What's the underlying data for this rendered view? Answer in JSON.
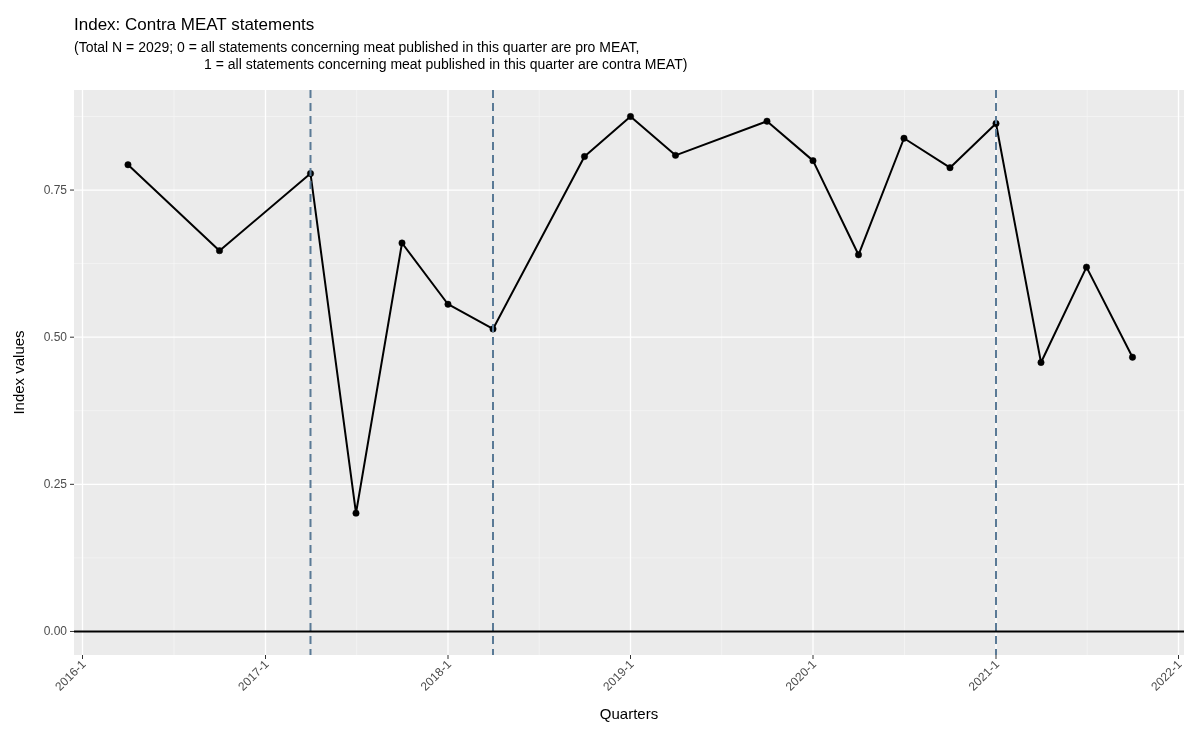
{
  "chart_data": {
    "type": "line",
    "title": "Index: Contra MEAT statements",
    "subtitle": "(Total N = 2029; 0 = all statements concerning meat published in this quarter are pro MEAT,\n1 = all statements concerning meat published in this quarter are contra MEAT)",
    "xlabel": "Quarters",
    "ylabel": "Index values",
    "x": [
      "2016-04",
      "2016-10",
      "2017-04",
      "2017-07",
      "2017-10",
      "2018-01",
      "2018-04",
      "2018-10",
      "2019-01",
      "2019-04",
      "2019-10",
      "2020-01",
      "2020-04",
      "2020-07",
      "2020-10",
      "2021-01",
      "2021-04",
      "2021-07",
      "2021-10"
    ],
    "series": [
      {
        "color": "#000000",
        "values": [
          0.793,
          0.647,
          0.778,
          0.201,
          0.66,
          0.556,
          0.514,
          0.807,
          0.875,
          0.809,
          0.867,
          0.8,
          0.64,
          0.838,
          0.788,
          0.863,
          0.457,
          0.619,
          0.466
        ]
      }
    ],
    "xlim": [
      "2015-12-15",
      "2022-01-12"
    ],
    "xticks": [
      {
        "value": "2016-01",
        "label": "2016-1"
      },
      {
        "value": "2017-01",
        "label": "2017-1"
      },
      {
        "value": "2018-01",
        "label": "2018-1"
      },
      {
        "value": "2019-01",
        "label": "2019-1"
      },
      {
        "value": "2020-01",
        "label": "2020-1"
      },
      {
        "value": "2021-01",
        "label": "2021-1"
      },
      {
        "value": "2022-01",
        "label": "2022-1"
      }
    ],
    "ylim": [
      -0.04,
      0.92
    ],
    "yticks": [
      {
        "value": 0,
        "label": "0.00"
      },
      {
        "value": 0.25,
        "label": "0.25"
      },
      {
        "value": 0.5,
        "label": "0.50"
      },
      {
        "value": 0.75,
        "label": "0.75"
      }
    ],
    "ref_lines": [
      {
        "axis": "x",
        "value": "2017-04",
        "color": "#5a7a96",
        "line_style": "dashed"
      },
      {
        "axis": "x",
        "value": "2018-04",
        "color": "#5a7a96",
        "line_style": "dashed"
      },
      {
        "axis": "x",
        "value": "2021-01",
        "color": "#5a7a96",
        "line_style": "dashed"
      },
      {
        "axis": "y",
        "value": 0,
        "color": "#000000",
        "line_style": "solid"
      }
    ],
    "grid": true,
    "marker": "circle",
    "line_style": "solid"
  }
}
